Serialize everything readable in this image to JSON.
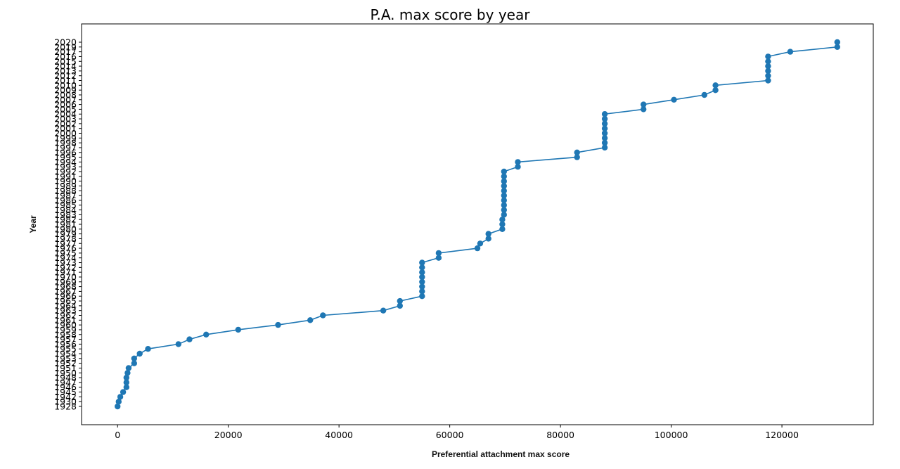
{
  "chart_data": {
    "type": "line",
    "title": "P.A. max score by year",
    "xlabel": "Preferential attachment max score",
    "ylabel": "Year",
    "xlim": [
      -6500,
      136500
    ],
    "x_ticks": [
      0,
      20000,
      40000,
      60000,
      80000,
      100000,
      120000
    ],
    "grid": false,
    "marker": "circle",
    "color": "#1f77b4",
    "series": [
      {
        "points": [
          {
            "year": "1928",
            "x": 0
          },
          {
            "year": "1930",
            "x": 200
          },
          {
            "year": "1942",
            "x": 500
          },
          {
            "year": "1945",
            "x": 1000
          },
          {
            "year": "1946",
            "x": 1600
          },
          {
            "year": "1947",
            "x": 1600
          },
          {
            "year": "1948",
            "x": 1600
          },
          {
            "year": "1950",
            "x": 1800
          },
          {
            "year": "1951",
            "x": 2000
          },
          {
            "year": "1952",
            "x": 3000
          },
          {
            "year": "1953",
            "x": 3000
          },
          {
            "year": "1954",
            "x": 4000
          },
          {
            "year": "1955",
            "x": 5500
          },
          {
            "year": "1956",
            "x": 11000
          },
          {
            "year": "1957",
            "x": 13000
          },
          {
            "year": "1958",
            "x": 16000
          },
          {
            "year": "1959",
            "x": 21800
          },
          {
            "year": "1960",
            "x": 29000
          },
          {
            "year": "1961",
            "x": 34800
          },
          {
            "year": "1962",
            "x": 37100
          },
          {
            "year": "1963",
            "x": 48000
          },
          {
            "year": "1964",
            "x": 51000
          },
          {
            "year": "1965",
            "x": 51000
          },
          {
            "year": "1966",
            "x": 55000
          },
          {
            "year": "1967",
            "x": 55000
          },
          {
            "year": "1968",
            "x": 55000
          },
          {
            "year": "1969",
            "x": 55000
          },
          {
            "year": "1970",
            "x": 55000
          },
          {
            "year": "1971",
            "x": 55000
          },
          {
            "year": "1972",
            "x": 55000
          },
          {
            "year": "1973",
            "x": 55000
          },
          {
            "year": "1974",
            "x": 58000
          },
          {
            "year": "1975",
            "x": 58000
          },
          {
            "year": "1976",
            "x": 65000
          },
          {
            "year": "1977",
            "x": 65500
          },
          {
            "year": "1978",
            "x": 67000
          },
          {
            "year": "1979",
            "x": 67000
          },
          {
            "year": "1980",
            "x": 69500
          },
          {
            "year": "1981",
            "x": 69500
          },
          {
            "year": "1982",
            "x": 69500
          },
          {
            "year": "1983",
            "x": 69800
          },
          {
            "year": "1984",
            "x": 69800
          },
          {
            "year": "1985",
            "x": 69800
          },
          {
            "year": "1986",
            "x": 69800
          },
          {
            "year": "1987",
            "x": 69800
          },
          {
            "year": "1988",
            "x": 69800
          },
          {
            "year": "1989",
            "x": 69800
          },
          {
            "year": "1990",
            "x": 69800
          },
          {
            "year": "1991",
            "x": 69800
          },
          {
            "year": "1992",
            "x": 69800
          },
          {
            "year": "1993",
            "x": 72300
          },
          {
            "year": "1994",
            "x": 72300
          },
          {
            "year": "1995",
            "x": 83000
          },
          {
            "year": "1996",
            "x": 83000
          },
          {
            "year": "1997",
            "x": 88000
          },
          {
            "year": "1998",
            "x": 88000
          },
          {
            "year": "1999",
            "x": 88000
          },
          {
            "year": "2000",
            "x": 88000
          },
          {
            "year": "2001",
            "x": 88000
          },
          {
            "year": "2002",
            "x": 88000
          },
          {
            "year": "2003",
            "x": 88000
          },
          {
            "year": "2004",
            "x": 88000
          },
          {
            "year": "2005",
            "x": 95000
          },
          {
            "year": "2006",
            "x": 95000
          },
          {
            "year": "2007",
            "x": 100500
          },
          {
            "year": "2008",
            "x": 106000
          },
          {
            "year": "2009",
            "x": 108000
          },
          {
            "year": "2010",
            "x": 108000
          },
          {
            "year": "2011",
            "x": 117500
          },
          {
            "year": "2012",
            "x": 117500
          },
          {
            "year": "2013",
            "x": 117500
          },
          {
            "year": "2014",
            "x": 117500
          },
          {
            "year": "2015",
            "x": 117500
          },
          {
            "year": "2016",
            "x": 117500
          },
          {
            "year": "2017",
            "x": 121500
          },
          {
            "year": "2019",
            "x": 130000
          },
          {
            "year": "2020",
            "x": 130000
          }
        ]
      }
    ]
  }
}
